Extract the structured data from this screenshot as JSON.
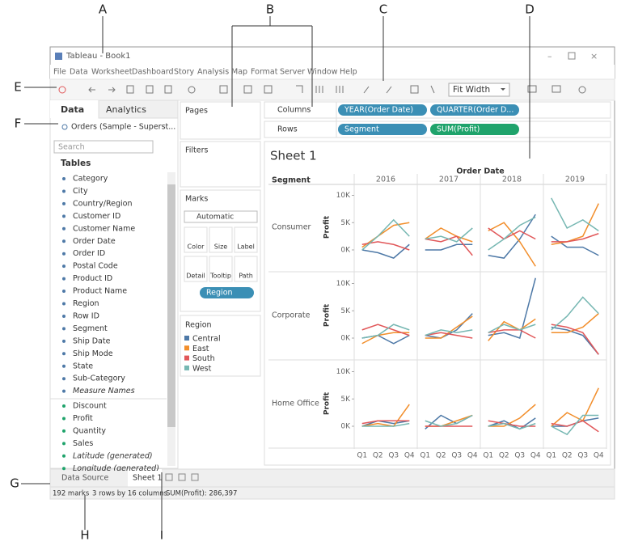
{
  "callouts": [
    "A",
    "B",
    "C",
    "D",
    "E",
    "F",
    "G",
    "H",
    "I"
  ],
  "window": {
    "title": "Tableau - Book1",
    "menu": [
      "File",
      "Data",
      "Worksheet",
      "Dashboard",
      "Story",
      "Analysis",
      "Map",
      "Format",
      "Server",
      "Window",
      "Help"
    ],
    "fit": "Fit Width"
  },
  "data_pane": {
    "tabs": [
      "Data",
      "Analytics"
    ],
    "source": "Orders (Sample - Superst...",
    "search": "Search",
    "tables_title": "Tables",
    "dimensions": [
      "Category",
      "City",
      "Country/Region",
      "Customer ID",
      "Customer Name",
      "Order Date",
      "Order ID",
      "Postal Code",
      "Product ID",
      "Product Name",
      "Region",
      "Row ID",
      "Segment",
      "Ship Date",
      "Ship Mode",
      "State",
      "Sub-Category",
      "Measure Names"
    ],
    "measures": [
      "Discount",
      "Profit",
      "Quantity",
      "Sales",
      "Latitude (generated)",
      "Longitude (generated)"
    ]
  },
  "shelves": {
    "pages": "Pages",
    "filters": "Filters",
    "columns": "Columns",
    "rows": "Rows",
    "columns_pills": [
      "YEAR(Order Date)",
      "QUARTER(Order D..."
    ],
    "rows_pills": [
      "Segment",
      "SUM(Profit)"
    ]
  },
  "marks": {
    "title": "Marks",
    "type": "Automatic",
    "buttons": [
      "Color",
      "Size",
      "Label",
      "Detail",
      "Tooltip",
      "Path"
    ],
    "pill": "Region"
  },
  "tabs": [
    "Data Source",
    "Sheet 1"
  ],
  "status": [
    "192 marks",
    "3 rows by 16 columns",
    "SUM(Profit): 286,397"
  ],
  "chart_data": {
    "type": "line",
    "title": "Sheet 1",
    "column_header": "Order Date",
    "row_header": "Segment",
    "legend_title": "Region",
    "y_label": "Profit",
    "years": [
      "2016",
      "2017",
      "2018",
      "2019"
    ],
    "quarters": [
      "Q1",
      "Q2",
      "Q3",
      "Q4"
    ],
    "segments": [
      "Consumer",
      "Corporate",
      "Home Office"
    ],
    "ylim": [
      -4000,
      12000
    ],
    "yticks": [
      {
        "value": 0,
        "label": "0K"
      },
      {
        "value": 5000,
        "label": "5K"
      },
      {
        "value": 10000,
        "label": "10K"
      }
    ],
    "series": [
      {
        "name": "Central",
        "color": "#4e79a7",
        "values": [
          [
            [
              0,
              -500,
              -1500,
              1000
            ],
            [
              0,
              0,
              1000,
              1000
            ],
            [
              -1000,
              -1500,
              2000,
              6500
            ],
            [
              2500,
              500,
              500,
              -1000
            ]
          ],
          [
            [
              0,
              500,
              -1000,
              500
            ],
            [
              500,
              0,
              1500,
              4500
            ],
            [
              500,
              1000,
              0,
              11000
            ],
            [
              2000,
              1500,
              500,
              -3000
            ]
          ],
          [
            [
              0,
              1000,
              500,
              1000
            ],
            [
              -500,
              2000,
              500,
              2000
            ],
            [
              0,
              1000,
              -500,
              1500
            ],
            [
              0,
              0,
              1000,
              1500
            ]
          ]
        ]
      },
      {
        "name": "East",
        "color": "#f28e2b",
        "values": [
          [
            [
              500,
              2500,
              4500,
              5000
            ],
            [
              2000,
              4000,
              2500,
              1500
            ],
            [
              3500,
              5000,
              1500,
              -3000
            ],
            [
              1000,
              1500,
              2500,
              8500
            ]
          ],
          [
            [
              -1000,
              500,
              1000,
              1000
            ],
            [
              0,
              0,
              2000,
              4000
            ],
            [
              -500,
              3000,
              1500,
              3500
            ],
            [
              1000,
              1000,
              2000,
              4500
            ]
          ],
          [
            [
              0,
              500,
              0,
              4000
            ],
            [
              0,
              0,
              1000,
              2000
            ],
            [
              0,
              0,
              1500,
              4000
            ],
            [
              0,
              2500,
              1000,
              7000
            ]
          ]
        ]
      },
      {
        "name": "South",
        "color": "#e15759",
        "values": [
          [
            [
              1000,
              1500,
              1000,
              0
            ],
            [
              2000,
              1500,
              2500,
              -1000
            ],
            [
              4000,
              2000,
              3500,
              2000
            ],
            [
              1500,
              1500,
              2000,
              3000
            ]
          ],
          [
            [
              1500,
              2500,
              1500,
              500
            ],
            [
              500,
              1000,
              500,
              0
            ],
            [
              1000,
              1500,
              1500,
              0
            ],
            [
              2500,
              2000,
              1000,
              -3000
            ]
          ],
          [
            [
              500,
              1000,
              1000,
              1000
            ],
            [
              0,
              0,
              0,
              0
            ],
            [
              1000,
              500,
              0,
              0
            ],
            [
              500,
              0,
              1000,
              -1000
            ]
          ]
        ]
      },
      {
        "name": "West",
        "color": "#76b7b2",
        "values": [
          [
            [
              0,
              2500,
              5500,
              2500
            ],
            [
              2000,
              2500,
              1500,
              4000
            ],
            [
              0,
              2000,
              4500,
              6000
            ],
            [
              9500,
              4000,
              5500,
              3500
            ]
          ],
          [
            [
              0,
              500,
              2500,
              1500
            ],
            [
              500,
              1500,
              1000,
              1500
            ],
            [
              1000,
              2500,
              1500,
              2500
            ],
            [
              1500,
              4000,
              7500,
              4500
            ]
          ],
          [
            [
              0,
              0,
              0,
              500
            ],
            [
              1000,
              0,
              500,
              2000
            ],
            [
              0,
              500,
              -500,
              500
            ],
            [
              0,
              -1500,
              2000,
              2000
            ]
          ]
        ]
      }
    ]
  }
}
